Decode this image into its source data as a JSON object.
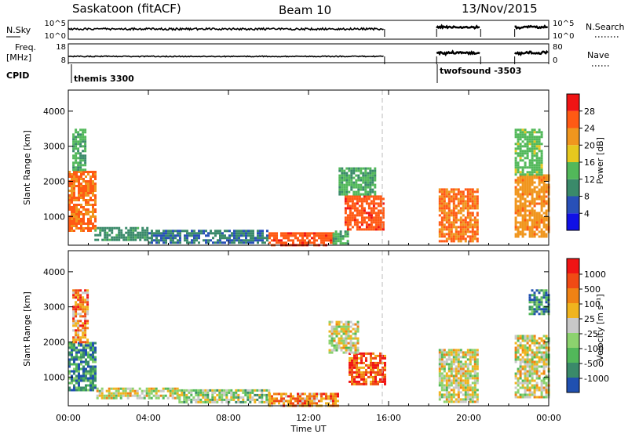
{
  "header": {
    "station": "Saskatoon (fitACF)",
    "beam": "Beam 10",
    "date": "13/Nov/2015"
  },
  "strip_panels": {
    "nsky_label": "N.Sky",
    "nsky_ticks": [
      "10^5",
      "10^0"
    ],
    "nsearch_label": "N.Search",
    "nsearch_ticks": [
      "10^5",
      "10^0"
    ],
    "freq_label_1": "Freq.",
    "freq_label_2": "[MHz]",
    "freq_ticks": [
      "18",
      "8"
    ],
    "nave_label": "Nave",
    "nave_ticks": [
      "80",
      "0"
    ],
    "cpid_label": "CPID",
    "cpid_segments": [
      {
        "name": "themis 3300",
        "start_hour": 0.0
      },
      {
        "name": "twofsound -3503",
        "start_hour": 18.4
      }
    ]
  },
  "chart_data": [
    {
      "type": "heatmap",
      "title": "",
      "xlabel": "",
      "ylabel": "Slant Range [km]",
      "x_range_hours": [
        0,
        24
      ],
      "ylim": [
        180,
        4600
      ],
      "y_ticks": [
        "1000",
        "2000",
        "3000",
        "4000"
      ],
      "colorbar_label": "Power [dB]",
      "colorbar_ticks": [
        "4",
        "8",
        "12",
        "16",
        "20",
        "24",
        "28"
      ],
      "colorbar_range": [
        0,
        32
      ],
      "colors": [
        "#1010e6",
        "#2850b8",
        "#3a8a6a",
        "#52b85a",
        "#e6c81e",
        "#f0961e",
        "#ff5a14",
        "#f01414"
      ],
      "data_gap_hours": [
        [
          15.8,
          18.4
        ],
        [
          20.6,
          22.3
        ]
      ],
      "regions": [
        {
          "hours": [
            0.0,
            1.4
          ],
          "range_km": [
            600,
            2300
          ],
          "level": 24
        },
        {
          "hours": [
            0.2,
            0.9
          ],
          "range_km": [
            2300,
            3500
          ],
          "level": 12
        },
        {
          "hours": [
            1.3,
            4.0
          ],
          "range_km": [
            300,
            700
          ],
          "level": 10
        },
        {
          "hours": [
            4.0,
            10.0
          ],
          "range_km": [
            220,
            620
          ],
          "level": 8
        },
        {
          "hours": [
            10.0,
            13.2
          ],
          "range_km": [
            200,
            550
          ],
          "level": 26
        },
        {
          "hours": [
            13.2,
            14.0
          ],
          "range_km": [
            250,
            600
          ],
          "level": 12
        },
        {
          "hours": [
            13.8,
            15.8
          ],
          "range_km": [
            600,
            1600
          ],
          "level": 26
        },
        {
          "hours": [
            13.5,
            15.3
          ],
          "range_km": [
            1600,
            2400
          ],
          "level": 12
        },
        {
          "hours": [
            18.5,
            20.5
          ],
          "range_km": [
            300,
            1800
          ],
          "level": 24
        },
        {
          "hours": [
            22.3,
            24.0
          ],
          "range_km": [
            400,
            2200
          ],
          "level": 22
        },
        {
          "hours": [
            22.3,
            23.6
          ],
          "range_km": [
            2200,
            3500
          ],
          "level": 14
        }
      ]
    },
    {
      "type": "heatmap",
      "title": "",
      "xlabel": "Time UT",
      "ylabel": "Slant Range [km]",
      "x_range_hours": [
        0,
        24
      ],
      "x_ticks": [
        "00:00",
        "04:00",
        "08:00",
        "12:00",
        "16:00",
        "20:00",
        "00:00"
      ],
      "ylim": [
        180,
        4600
      ],
      "y_ticks": [
        "1000",
        "2000",
        "3000",
        "4000"
      ],
      "colorbar_label": "Velocity [m s⁻¹]",
      "colorbar_ticks": [
        "1000",
        "500",
        "100",
        "25",
        "-25",
        "-100",
        "-500",
        "-1000"
      ],
      "colors": [
        "#2050b0",
        "#3a8a6a",
        "#52b85a",
        "#8cd26e",
        "#c8c8c8",
        "#f0b41e",
        "#f08214",
        "#f04a14",
        "#f01414"
      ],
      "data_gap_hours": [
        [
          15.8,
          18.4
        ],
        [
          20.6,
          22.3
        ]
      ],
      "regions": [
        {
          "hours": [
            0.0,
            1.4
          ],
          "range_km": [
            600,
            2000
          ],
          "level": 1
        },
        {
          "hours": [
            0.2,
            1.0
          ],
          "range_km": [
            2000,
            3500
          ],
          "level": 6
        },
        {
          "hours": [
            1.4,
            5.5
          ],
          "range_km": [
            400,
            700
          ],
          "level": 4
        },
        {
          "hours": [
            5.5,
            10.0
          ],
          "range_km": [
            250,
            650
          ],
          "level": 3
        },
        {
          "hours": [
            10.0,
            13.5
          ],
          "range_km": [
            200,
            550
          ],
          "level": 6
        },
        {
          "hours": [
            14.0,
            15.8
          ],
          "range_km": [
            800,
            1700
          ],
          "level": 7
        },
        {
          "hours": [
            13.0,
            14.5
          ],
          "range_km": [
            1700,
            2600
          ],
          "level": 4
        },
        {
          "hours": [
            18.5,
            20.5
          ],
          "range_km": [
            300,
            1800
          ],
          "level": 4
        },
        {
          "hours": [
            22.3,
            24.0
          ],
          "range_km": [
            400,
            2200
          ],
          "level": 4
        },
        {
          "hours": [
            23.0,
            24.0
          ],
          "range_km": [
            2800,
            3500
          ],
          "level": 1
        }
      ]
    }
  ]
}
